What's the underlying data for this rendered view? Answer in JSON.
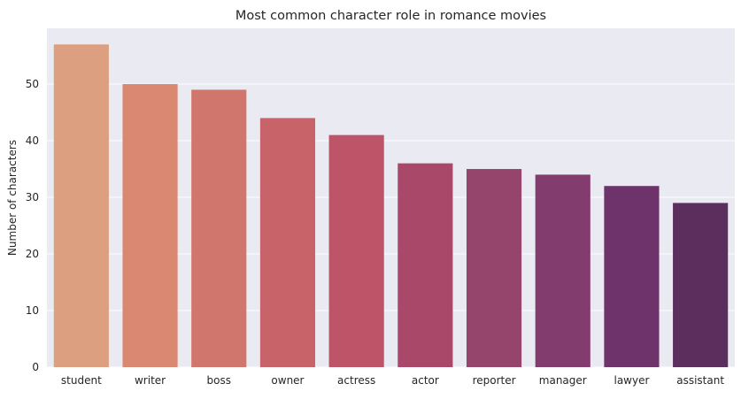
{
  "chart_data": {
    "type": "bar",
    "title": "Most common character role in romance movies",
    "xlabel": "",
    "ylabel": "Number of characters",
    "categories": [
      "student",
      "writer",
      "boss",
      "owner",
      "actress",
      "actor",
      "reporter",
      "manager",
      "lawyer",
      "assistant"
    ],
    "values": [
      57,
      50,
      49,
      44,
      41,
      36,
      35,
      34,
      32,
      29
    ],
    "colors": [
      "#dc9f80",
      "#db8873",
      "#d1766c",
      "#c9636a",
      "#bd5468",
      "#aa4869",
      "#95446c",
      "#823c6d",
      "#6d336a",
      "#5b2e5e"
    ],
    "ylim": [
      0,
      59.85
    ],
    "yticks": [
      0,
      10,
      20,
      30,
      40,
      50
    ],
    "grid": true,
    "legend": "none",
    "style": {
      "background": "#eaeaf2",
      "grid_color": "#ffffff"
    }
  }
}
